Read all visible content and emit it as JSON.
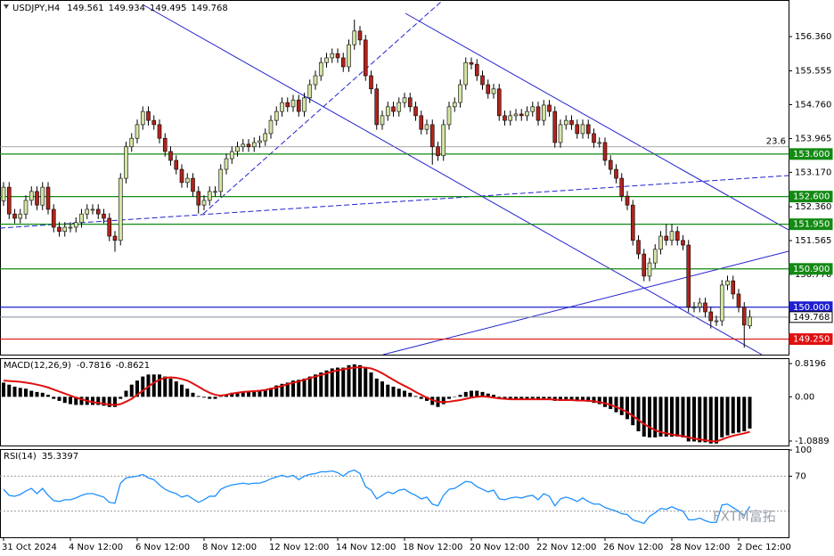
{
  "chart_data": [
    {
      "type": "candlestick",
      "title": "USDJPY,H4",
      "categories": [
        "31 Oct 2024",
        null,
        null,
        null,
        null,
        null,
        null,
        null,
        null,
        null,
        null,
        null,
        "4 Nov 12:00",
        null,
        null,
        null,
        null,
        null,
        null,
        null,
        null,
        null,
        null,
        null,
        "6 Nov 12:00",
        null,
        null,
        null,
        null,
        null,
        null,
        null,
        null,
        null,
        null,
        null,
        "8 Nov 12:00",
        null,
        null,
        null,
        null,
        null,
        null,
        null,
        null,
        null,
        null,
        null,
        "12 Nov 12:00",
        null,
        null,
        null,
        null,
        null,
        null,
        null,
        null,
        null,
        null,
        null,
        "14 Nov 12:00",
        null,
        null,
        null,
        null,
        null,
        null,
        null,
        null,
        null,
        null,
        null,
        "18 Nov 12:00",
        null,
        null,
        null,
        null,
        null,
        null,
        null,
        null,
        null,
        null,
        null,
        "20 Nov 12:00",
        null,
        null,
        null,
        null,
        null,
        null,
        null,
        null,
        null,
        null,
        null,
        "22 Nov 12:00",
        null,
        null,
        null,
        null,
        null,
        null,
        null,
        null,
        null,
        null,
        null,
        "26 Nov 12:00",
        null,
        null,
        null,
        null,
        null,
        null,
        null,
        null,
        null,
        null,
        null,
        "28 Nov 12:00",
        null,
        null,
        null,
        null,
        null,
        null,
        null,
        null,
        null,
        null,
        null,
        "2 Dec 12:00",
        null,
        null
      ],
      "open": [
        152.5,
        152.82,
        152.19,
        152.09,
        152.19,
        152.51,
        152.72,
        152.4,
        152.82,
        152.3,
        151.88,
        151.78,
        151.88,
        151.88,
        151.99,
        152.19,
        152.3,
        152.3,
        152.19,
        152.09,
        151.67,
        151.57,
        153.03,
        153.77,
        153.97,
        154.29,
        154.6,
        154.39,
        154.29,
        153.97,
        153.66,
        153.45,
        153.24,
        152.93,
        153.03,
        152.72,
        152.4,
        152.51,
        152.72,
        152.72,
        153.24,
        153.49,
        153.66,
        153.77,
        153.83,
        153.77,
        153.87,
        153.91,
        154.08,
        154.39,
        154.6,
        154.81,
        154.71,
        154.87,
        154.6,
        154.92,
        155.23,
        155.44,
        155.75,
        155.86,
        155.96,
        155.86,
        155.65,
        156.17,
        156.49,
        156.28,
        155.44,
        155.13,
        154.29,
        154.5,
        154.71,
        154.6,
        154.81,
        154.92,
        154.71,
        154.5,
        154.18,
        154.29,
        153.77,
        153.56,
        154.29,
        154.71,
        154.81,
        155.23,
        155.75,
        155.71,
        155.44,
        155.23,
        155.02,
        155.13,
        154.5,
        154.39,
        154.5,
        154.54,
        154.5,
        154.6,
        154.71,
        154.39,
        154.75,
        154.6,
        153.87,
        154.29,
        154.39,
        154.29,
        154.08,
        154.29,
        154.08,
        153.87,
        153.87,
        153.45,
        153.24,
        153.03,
        152.61,
        152.4,
        151.57,
        151.25,
        150.73,
        151.04,
        151.36,
        151.67,
        151.57,
        151.78,
        151.57,
        151.46,
        150.0,
        150.0,
        150.1,
        149.89,
        149.68,
        149.68,
        150.52,
        150.62,
        150.31,
        150.0,
        149.561
      ],
      "high": [
        152.94,
        152.94,
        152.31,
        152.31,
        152.63,
        152.84,
        152.84,
        152.94,
        152.94,
        152.42,
        152.0,
        152.0,
        152.0,
        152.11,
        152.31,
        152.42,
        152.42,
        152.42,
        152.31,
        152.21,
        151.79,
        153.15,
        153.89,
        154.09,
        154.41,
        154.72,
        154.72,
        154.51,
        154.41,
        154.09,
        153.78,
        153.57,
        153.36,
        153.15,
        153.15,
        152.84,
        152.63,
        152.84,
        152.84,
        153.36,
        153.61,
        153.78,
        153.89,
        153.95,
        153.95,
        153.99,
        154.03,
        154.2,
        154.51,
        154.72,
        154.93,
        154.93,
        154.99,
        154.99,
        155.04,
        155.35,
        155.56,
        155.87,
        155.98,
        156.08,
        156.08,
        155.98,
        156.29,
        156.76,
        156.61,
        156.4,
        155.56,
        155.25,
        154.62,
        154.83,
        154.83,
        154.93,
        155.04,
        155.04,
        154.83,
        154.62,
        154.41,
        154.41,
        153.89,
        154.41,
        154.83,
        154.93,
        155.35,
        155.87,
        155.87,
        155.83,
        155.56,
        155.35,
        155.25,
        155.25,
        154.62,
        154.62,
        154.66,
        154.66,
        154.72,
        154.83,
        154.83,
        154.87,
        154.87,
        154.72,
        154.41,
        154.51,
        154.51,
        154.41,
        154.41,
        154.41,
        154.2,
        153.99,
        153.99,
        153.57,
        153.36,
        153.15,
        152.73,
        152.52,
        151.69,
        151.37,
        151.16,
        151.48,
        151.79,
        151.95,
        151.95,
        151.9,
        151.69,
        151.58,
        150.12,
        150.22,
        150.22,
        150.01,
        149.8,
        150.64,
        150.74,
        150.74,
        150.43,
        150.12,
        149.934
      ],
      "low": [
        152.38,
        152.07,
        151.97,
        151.97,
        152.07,
        152.39,
        152.28,
        152.28,
        152.18,
        151.76,
        151.66,
        151.66,
        151.76,
        151.76,
        151.87,
        152.07,
        152.18,
        152.07,
        151.97,
        151.55,
        151.3,
        151.45,
        152.91,
        153.65,
        153.85,
        154.17,
        154.27,
        154.17,
        153.85,
        153.54,
        153.33,
        153.12,
        152.81,
        152.81,
        152.6,
        152.2,
        152.28,
        152.39,
        152.6,
        152.6,
        153.12,
        153.37,
        153.54,
        153.65,
        153.65,
        153.65,
        153.75,
        153.79,
        153.96,
        154.27,
        154.48,
        154.59,
        154.59,
        154.48,
        154.48,
        154.8,
        155.11,
        155.32,
        155.63,
        155.74,
        155.74,
        155.53,
        155.53,
        156.05,
        156.16,
        155.32,
        155.01,
        154.17,
        154.17,
        154.38,
        154.48,
        154.48,
        154.69,
        154.59,
        154.38,
        154.06,
        154.06,
        153.35,
        153.44,
        153.44,
        154.17,
        154.59,
        154.69,
        155.11,
        155.59,
        155.32,
        155.11,
        154.9,
        154.9,
        154.38,
        154.27,
        154.27,
        154.38,
        154.38,
        154.38,
        154.48,
        154.27,
        154.27,
        154.48,
        153.75,
        153.75,
        154.17,
        154.17,
        153.96,
        153.96,
        153.96,
        153.75,
        153.75,
        153.33,
        153.12,
        152.91,
        152.49,
        152.28,
        151.45,
        151.13,
        150.61,
        150.61,
        150.92,
        151.24,
        151.45,
        151.45,
        151.45,
        151.34,
        149.88,
        149.88,
        149.88,
        149.77,
        149.5,
        149.56,
        149.56,
        150.4,
        150.19,
        149.88,
        149.05,
        149.495
      ],
      "close": [
        152.82,
        152.19,
        152.09,
        152.19,
        152.51,
        152.72,
        152.4,
        152.82,
        152.3,
        151.88,
        151.78,
        151.88,
        151.88,
        151.99,
        152.19,
        152.3,
        152.3,
        152.19,
        152.09,
        151.67,
        151.57,
        153.03,
        153.77,
        153.97,
        154.29,
        154.6,
        154.39,
        154.29,
        153.97,
        153.66,
        153.45,
        153.24,
        152.93,
        153.03,
        152.72,
        152.4,
        152.51,
        152.72,
        152.72,
        153.24,
        153.49,
        153.66,
        153.77,
        153.83,
        153.77,
        153.87,
        153.91,
        154.08,
        154.39,
        154.6,
        154.81,
        154.71,
        154.87,
        154.6,
        154.92,
        155.23,
        155.44,
        155.75,
        155.86,
        155.96,
        155.86,
        155.65,
        156.17,
        156.49,
        156.28,
        155.44,
        155.13,
        154.29,
        154.5,
        154.71,
        154.6,
        154.81,
        154.92,
        154.71,
        154.5,
        154.18,
        154.29,
        153.77,
        153.56,
        154.29,
        154.71,
        154.81,
        155.23,
        155.75,
        155.71,
        155.44,
        155.23,
        155.02,
        155.13,
        154.5,
        154.39,
        154.5,
        154.54,
        154.5,
        154.6,
        154.71,
        154.39,
        154.75,
        154.6,
        153.87,
        154.29,
        154.39,
        154.29,
        154.08,
        154.29,
        154.08,
        153.87,
        153.87,
        153.45,
        153.24,
        153.03,
        152.61,
        152.4,
        151.57,
        151.25,
        150.73,
        151.04,
        151.36,
        151.67,
        151.57,
        151.78,
        151.57,
        151.46,
        150.0,
        150.0,
        150.1,
        149.89,
        149.68,
        149.68,
        150.52,
        150.62,
        150.31,
        150.0,
        149.58,
        149.768
      ],
      "bull_color": "#d4e6a5",
      "bear_color": "#b0241c",
      "wick_color": "#000000",
      "ylim": [
        148.885,
        157.22
      ],
      "yticks": [
        {
          "value": 156.36,
          "label": "156.360"
        },
        {
          "value": 155.555,
          "label": "155.555"
        },
        {
          "value": 154.76,
          "label": "154.760"
        },
        {
          "value": 153.965,
          "label": "153.965"
        },
        {
          "value": 153.17,
          "label": "153.170"
        },
        {
          "value": 152.36,
          "label": "152.360"
        },
        {
          "value": 151.565,
          "label": "151.565"
        },
        {
          "value": 150.77,
          "label": "150.770"
        }
      ],
      "levels": [
        {
          "value": 153.6,
          "label": "153.600",
          "color": "#138a13"
        },
        {
          "value": 152.6,
          "label": "152.600",
          "color": "#138a13"
        },
        {
          "value": 151.95,
          "label": "151.950",
          "color": "#138a13"
        },
        {
          "value": 150.9,
          "label": "150.900",
          "color": "#138a13"
        },
        {
          "value": 150.0,
          "label": "150.000",
          "color": "#1f1fd0"
        },
        {
          "value": 149.25,
          "label": "149.250",
          "color": "#e01010"
        }
      ],
      "fib_levels": [
        {
          "value": 153.77,
          "label": "23.6"
        }
      ],
      "last_price_color": "#7f8c99"
    },
    {
      "type": "macd",
      "title": "MACD(12,26,9)",
      "values": [
        0.35,
        0.3,
        0.25,
        0.22,
        0.2,
        0.15,
        0.12,
        0.1,
        0.05,
        -0.05,
        -0.1,
        -0.15,
        -0.18,
        -0.2,
        -0.2,
        -0.2,
        -0.2,
        -0.2,
        -0.22,
        -0.25,
        -0.25,
        -0.05,
        0.15,
        0.3,
        0.4,
        0.5,
        0.55,
        0.55,
        0.55,
        0.5,
        0.45,
        0.38,
        0.3,
        0.2,
        0.1,
        0.02,
        -0.02,
        -0.05,
        -0.05,
        0.02,
        0.05,
        0.1,
        0.1,
        0.12,
        0.12,
        0.12,
        0.15,
        0.18,
        0.22,
        0.28,
        0.32,
        0.35,
        0.4,
        0.42,
        0.45,
        0.5,
        0.55,
        0.6,
        0.65,
        0.7,
        0.72,
        0.72,
        0.78,
        0.8,
        0.78,
        0.7,
        0.6,
        0.45,
        0.38,
        0.3,
        0.25,
        0.2,
        0.15,
        0.1,
        0.02,
        -0.05,
        -0.1,
        -0.2,
        -0.25,
        -0.18,
        -0.05,
        0.0,
        0.05,
        0.12,
        0.15,
        0.15,
        0.12,
        0.08,
        0.05,
        -0.03,
        -0.06,
        -0.06,
        -0.06,
        -0.05,
        -0.05,
        -0.04,
        -0.05,
        -0.04,
        -0.04,
        -0.1,
        -0.1,
        -0.08,
        -0.08,
        -0.1,
        -0.1,
        -0.12,
        -0.15,
        -0.18,
        -0.25,
        -0.3,
        -0.38,
        -0.45,
        -0.55,
        -0.7,
        -0.85,
        -0.98,
        -1.0,
        -1.0,
        -0.98,
        -0.98,
        -0.98,
        -0.98,
        -1.0,
        -1.1,
        -1.1,
        -1.12,
        -1.12,
        -1.15,
        -1.15,
        -1.0,
        -0.95,
        -0.9,
        -0.88,
        -0.85,
        -0.7816
      ],
      "signal": [
        0.4,
        0.39,
        0.38,
        0.37,
        0.35,
        0.33,
        0.3,
        0.27,
        0.23,
        0.18,
        0.13,
        0.08,
        0.03,
        -0.02,
        -0.06,
        -0.1,
        -0.13,
        -0.15,
        -0.17,
        -0.19,
        -0.2,
        -0.18,
        -0.12,
        -0.05,
        0.05,
        0.15,
        0.25,
        0.35,
        0.42,
        0.47,
        0.48,
        0.47,
        0.44,
        0.4,
        0.33,
        0.25,
        0.17,
        0.1,
        0.05,
        0.03,
        0.05,
        0.08,
        0.1,
        0.12,
        0.13,
        0.14,
        0.15,
        0.17,
        0.2,
        0.23,
        0.27,
        0.31,
        0.35,
        0.38,
        0.42,
        0.46,
        0.5,
        0.54,
        0.58,
        0.62,
        0.65,
        0.68,
        0.7,
        0.72,
        0.73,
        0.72,
        0.7,
        0.65,
        0.58,
        0.5,
        0.42,
        0.34,
        0.27,
        0.2,
        0.12,
        0.05,
        -0.02,
        -0.08,
        -0.12,
        -0.13,
        -0.12,
        -0.1,
        -0.08,
        -0.05,
        -0.02,
        0.0,
        0.01,
        0.0,
        -0.02,
        -0.04,
        -0.05,
        -0.06,
        -0.06,
        -0.06,
        -0.06,
        -0.06,
        -0.06,
        -0.06,
        -0.06,
        -0.07,
        -0.08,
        -0.08,
        -0.08,
        -0.09,
        -0.09,
        -0.1,
        -0.11,
        -0.13,
        -0.16,
        -0.2,
        -0.25,
        -0.31,
        -0.38,
        -0.47,
        -0.57,
        -0.67,
        -0.75,
        -0.82,
        -0.87,
        -0.9,
        -0.93,
        -0.95,
        -0.97,
        -1.0,
        -1.03,
        -1.05,
        -1.07,
        -1.09,
        -1.1,
        -1.05,
        -1.0,
        -0.96,
        -0.93,
        -0.9,
        -0.8621
      ],
      "color": "#000000",
      "signal_color": "#e01010",
      "ylim": [
        -1.2,
        0.93
      ],
      "yticks": [
        0.8196,
        {
          "value": 0,
          "label": "0.00"
        },
        -1.0889
      ]
    },
    {
      "type": "rsi",
      "title": "RSI(14)",
      "values": [
        55,
        48,
        47,
        49,
        53,
        56,
        50,
        56,
        48,
        42,
        41,
        43,
        43,
        45,
        48,
        50,
        50,
        48,
        46,
        40,
        39,
        62,
        68,
        69,
        70,
        72,
        68,
        66,
        60,
        55,
        52,
        50,
        46,
        48,
        44,
        40,
        43,
        47,
        47,
        55,
        58,
        60,
        61,
        62,
        61,
        62,
        62,
        64,
        67,
        69,
        71,
        69,
        71,
        66,
        70,
        72,
        73,
        75,
        75,
        76,
        74,
        70,
        75,
        77,
        73,
        58,
        54,
        44,
        48,
        52,
        50,
        54,
        55,
        51,
        48,
        44,
        46,
        38,
        36,
        48,
        55,
        56,
        60,
        64,
        63,
        58,
        55,
        52,
        54,
        44,
        43,
        45,
        46,
        45,
        47,
        48,
        43,
        50,
        47,
        36,
        44,
        46,
        44,
        41,
        45,
        41,
        38,
        38,
        34,
        32,
        30,
        27,
        26,
        20,
        18,
        16,
        24,
        28,
        33,
        32,
        35,
        32,
        30,
        20,
        20,
        22,
        19,
        17,
        17,
        37,
        38,
        34,
        30,
        25,
        35.3397
      ],
      "color": "#1e90ff",
      "ylim": [
        0,
        100
      ],
      "yticks": [
        100,
        70
      ],
      "levels": [
        70,
        30
      ]
    }
  ],
  "watermark": "FXTM富拓"
}
